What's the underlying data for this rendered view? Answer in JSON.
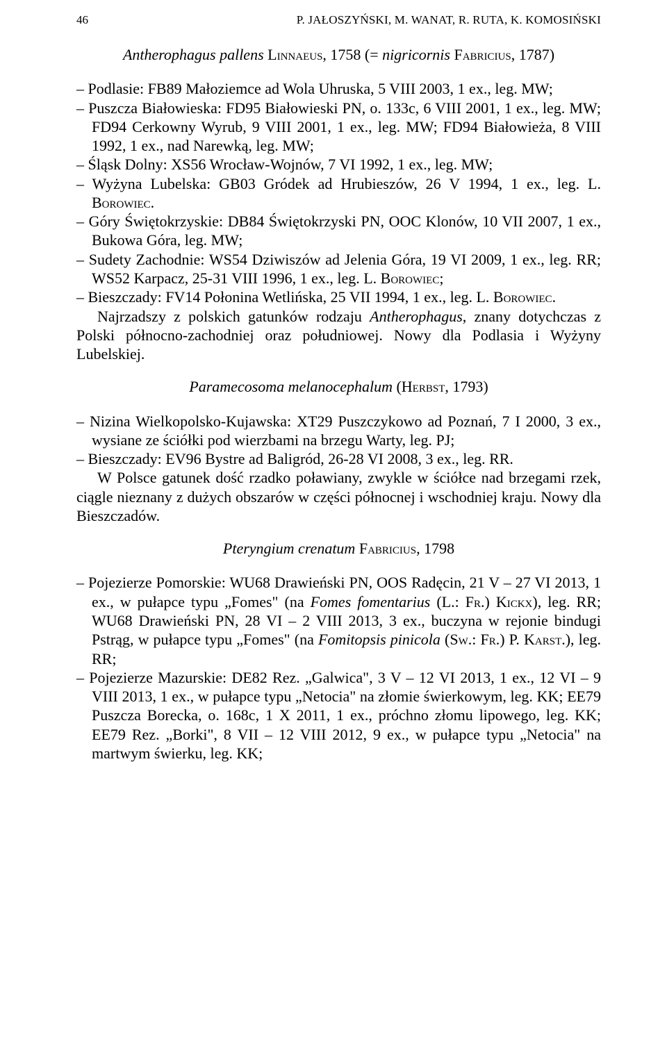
{
  "header": {
    "page_number": "46",
    "authors": "P. JAŁOSZYŃSKI, M. WANAT, R. RUTA, K. KOMOSIŃSKI"
  },
  "species1": {
    "title_italic_1": "Antherophagus pallens",
    "title_sc_1": "Linnaeus",
    "title_roman_1": ", 1758 (= ",
    "title_italic_2": "nigricornis",
    "title_sc_2": "Fabricius",
    "title_roman_2": ", 1787)",
    "entries": [
      "– Podlasie: FB89 Małoziemce ad Wola Uhruska, 5 VIII 2003, 1 ex., leg. MW;",
      "– Puszcza Białowieska: FD95 Białowieski PN, o. 133c, 6 VIII 2001, 1 ex., leg. MW; FD94 Cerkowny Wyrub, 9 VIII 2001, 1 ex., leg. MW; FD94 Białowieża, 8 VIII 1992, 1 ex., nad Narewką, leg. MW;",
      "– Śląsk Dolny: XS56 Wrocław-Wojnów, 7 VI 1992, 1 ex., leg. MW;",
      "– Wyżyna Lubelska: GB03 Gródek ad Hrubieszów, 26 V 1994, 1 ex., leg. L. BOROWIEC.",
      "– Góry Świętokrzyskie: DB84 Świętokrzyski PN, OOC Klonów, 10 VII 2007, 1 ex., Bukowa Góra, leg. MW;",
      "– Sudety Zachodnie: WS54 Dziwiszów ad Jelenia Góra, 19 VI 2009, 1 ex., leg. RR; WS52 Karpacz, 25-31 VIII 1996, 1 ex., leg. L. BOROWIEC;",
      "– Bieszczady: FV14 Połonina Wetlińska, 25 VII 1994, 1 ex., leg. L. BOROWIEC."
    ],
    "note_1a": "Najrzadszy z polskich gatunków rodzaju ",
    "note_1b": "Antherophagus",
    "note_1c": ", znany dotychczas z Polski północno-zachodniej oraz południowej. Nowy dla Podlasia i Wyżyny Lubelskiej."
  },
  "species2": {
    "title_italic_1": "Paramecosoma melanocephalum",
    "title_roman_1": " (",
    "title_sc_1": "Herbst",
    "title_roman_2": ", 1793)",
    "entries": [
      "– Nizina Wielkopolsko-Kujawska: XT29 Puszczykowo ad Poznań, 7 I 2000, 3 ex., wysiane ze ściółki pod wierzbami na brzegu Warty, leg. PJ;",
      "– Bieszczady: EV96 Bystre ad Baligród, 26-28 VI 2008, 3 ex., leg. RR."
    ],
    "note": "W Polsce gatunek dość rzadko poławiany, zwykle w ściółce nad brzegami rzek, ciągle nieznany z dużych obszarów w części północnej i wschodniej kraju. Nowy dla Bieszczadów."
  },
  "species3": {
    "title_italic_1": "Pteryngium crenatum",
    "title_sc_1": "Fabricius",
    "title_roman_1": ", 1798",
    "entry1_a": "– Pojezierze Pomorskie: WU68 Drawieński PN, OOS Radęcin, 21 V – 27 VI 2013, 1 ex., w pułapce typu „Fomes\" (na ",
    "entry1_b": "Fomes fomentarius",
    "entry1_c": " (L.: ",
    "entry1_d": "Fr.",
    "entry1_e": ") ",
    "entry1_f": "Kickx",
    "entry1_g": "), leg. RR; WU68 Drawieński PN, 28 VI – 2 VIII 2013, 3 ex., buczyna w rejonie bindugi Pstrąg, w pułapce typu „Fomes\" (na ",
    "entry1_h": "Fomitopsis pinicola",
    "entry1_i": " (",
    "entry1_j": "Sw.",
    "entry1_k": ": ",
    "entry1_l": "Fr.",
    "entry1_m": ") P. ",
    "entry1_n": "Karst.",
    "entry1_o": "), leg. RR;",
    "entry2": "– Pojezierze Mazurskie: DE82 Rez. „Galwica\", 3 V – 12 VI 2013, 1 ex., 12 VI – 9 VIII 2013, 1 ex., w pułapce typu „Netocia\" na złomie świerkowym, leg. KK; EE79 Puszcza Borecka, o. 168c, 1 X 2011, 1 ex., próchno złomu lipowego, leg. KK; EE79 Rez. „Borki\", 8 VII – 12 VIII 2012, 9 ex., w pułapce typu „Netocia\" na martwym świerku, leg. KK;"
  }
}
